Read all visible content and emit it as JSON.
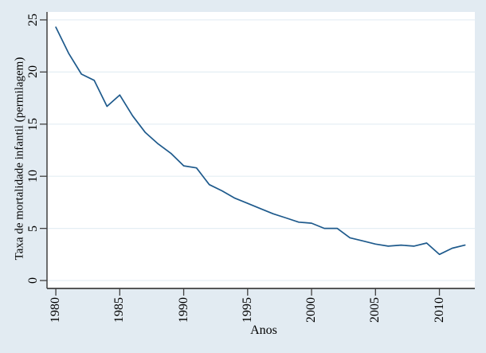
{
  "colors": {
    "background": "#e2ebf2",
    "plot_background": "#ffffff",
    "gridline": "#e4eef4",
    "axis": "#404040",
    "series_line": "#1e5a8c",
    "text": "#000000"
  },
  "chart_data": {
    "type": "line",
    "title": "",
    "xlabel": "Anos",
    "ylabel": "Taxa de mortalidade infantil (permilagem)",
    "x": [
      1980,
      1981,
      1982,
      1983,
      1984,
      1985,
      1986,
      1987,
      1988,
      1989,
      1990,
      1991,
      1992,
      1993,
      1994,
      1995,
      1996,
      1997,
      1998,
      1999,
      2000,
      2001,
      2002,
      2003,
      2004,
      2005,
      2006,
      2007,
      2008,
      2009,
      2010,
      2011,
      2012
    ],
    "series": [
      {
        "name": "Taxa de mortalidade infantil (permilagem)",
        "values": [
          24.3,
          21.8,
          19.8,
          19.2,
          16.7,
          17.8,
          15.8,
          14.2,
          13.1,
          12.2,
          11.0,
          10.8,
          9.2,
          8.6,
          7.9,
          7.4,
          6.9,
          6.4,
          6.0,
          5.6,
          5.5,
          5.0,
          5.0,
          4.1,
          3.8,
          3.5,
          3.3,
          3.4,
          3.3,
          3.6,
          2.5,
          3.1,
          3.4
        ]
      }
    ],
    "xlim": [
      1979.31,
      2012.77
    ],
    "ylim": [
      -0.76,
      25.76
    ],
    "x_ticks": [
      {
        "value": 1980,
        "label": "1980"
      },
      {
        "value": 1985,
        "label": "1985"
      },
      {
        "value": 1990,
        "label": "1990"
      },
      {
        "value": 1995,
        "label": "1995"
      },
      {
        "value": 2000,
        "label": "2000"
      },
      {
        "value": 2005,
        "label": "2005"
      },
      {
        "value": 2010,
        "label": "2010"
      }
    ],
    "y_ticks": [
      {
        "value": 0,
        "label": "0"
      },
      {
        "value": 5,
        "label": "5"
      },
      {
        "value": 10,
        "label": "10"
      },
      {
        "value": 15,
        "label": "15"
      },
      {
        "value": 20,
        "label": "20"
      },
      {
        "value": 25,
        "label": "25"
      }
    ],
    "grid": true,
    "legend": false,
    "tick_label_rotation_deg": -90
  }
}
